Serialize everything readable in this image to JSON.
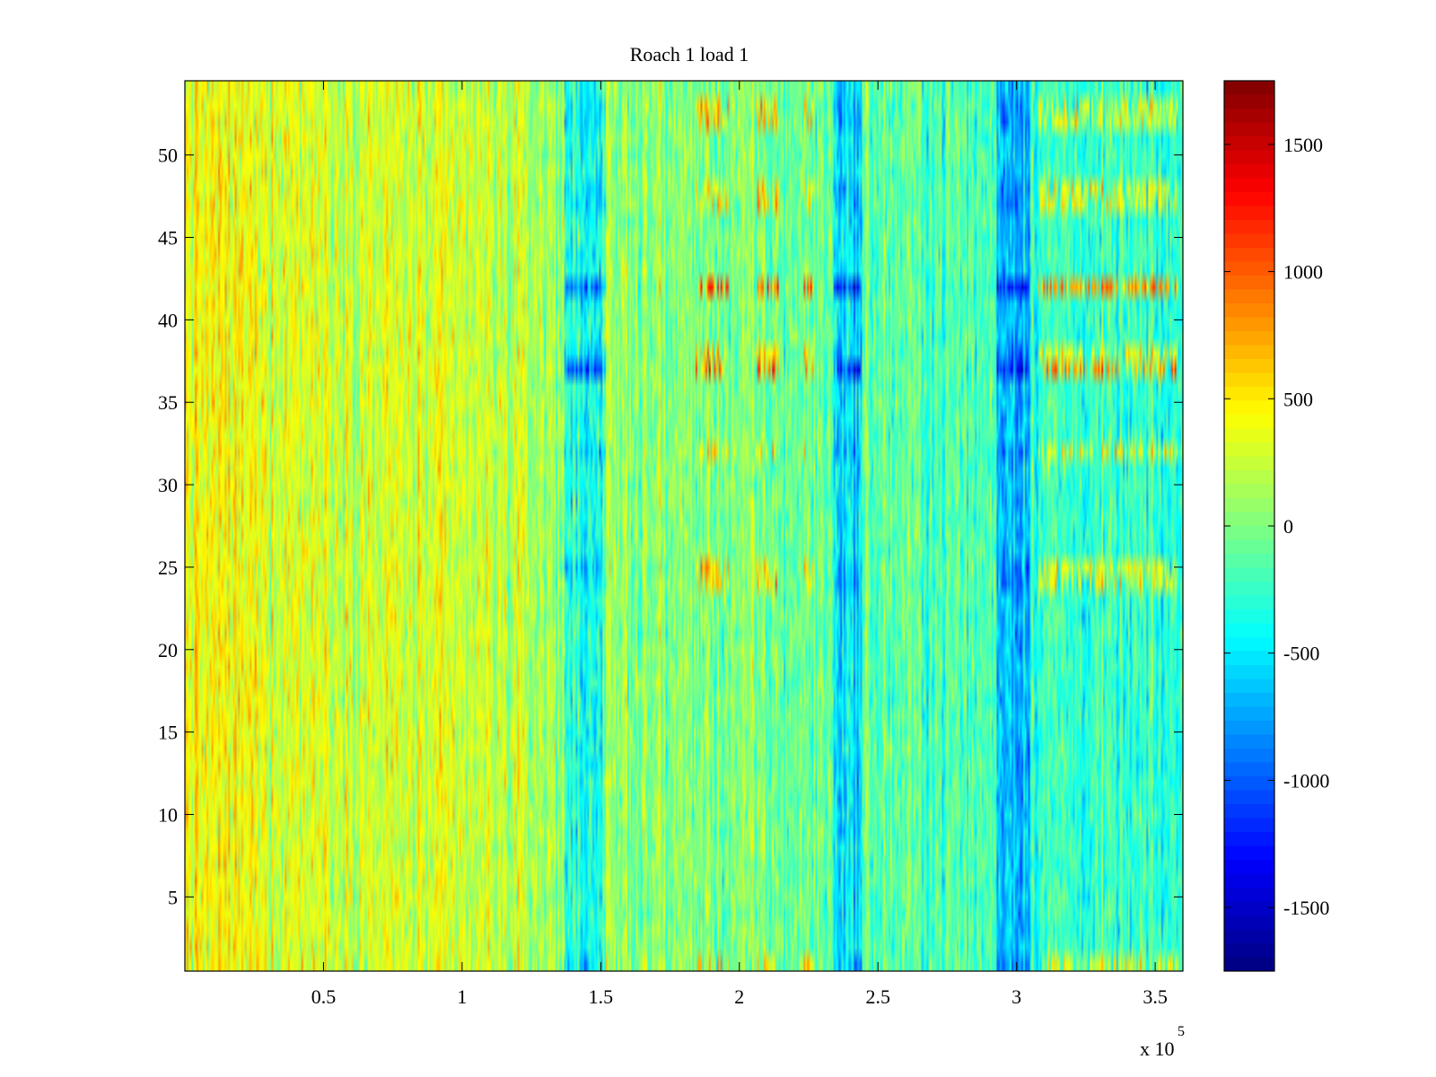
{
  "chart_data": {
    "type": "heatmap",
    "title": "Roach 1 load 1",
    "xlabel": "",
    "ylabel": "",
    "x_multiplier_base": "x 10",
    "x_multiplier_exponent": "5",
    "xlim": [
      0,
      3.6
    ],
    "ylim": [
      0.5,
      54.5
    ],
    "x_ticks": [
      0.5,
      1,
      1.5,
      2,
      2.5,
      3,
      3.5
    ],
    "x_tick_labels": [
      "0.5",
      "1",
      "1.5",
      "2",
      "2.5",
      "3",
      "3.5"
    ],
    "y_ticks": [
      5,
      10,
      15,
      20,
      25,
      30,
      35,
      40,
      45,
      50
    ],
    "y_tick_labels": [
      "5",
      "10",
      "15",
      "20",
      "25",
      "30",
      "35",
      "40",
      "45",
      "50"
    ],
    "rows": 54,
    "columns": 600,
    "colormap": "jet",
    "colorbar": {
      "clim": [
        -1750,
        1750
      ],
      "ticks": [
        -1500,
        -1000,
        -500,
        0,
        500,
        1000,
        1500
      ],
      "tick_labels": [
        "-1500",
        "-1000",
        "-500",
        "0",
        "500",
        "1000",
        "1500"
      ]
    },
    "active_rows": [
      1,
      24,
      25,
      32,
      37,
      38,
      42,
      47,
      48,
      52,
      53
    ],
    "strong_rows": [
      37,
      42
    ],
    "negative_bands_x": [
      [
        1.37,
        1.52
      ],
      [
        2.34,
        2.44
      ],
      [
        2.93,
        3.05
      ]
    ],
    "positive_bands_x": [
      [
        1.84,
        1.96
      ],
      [
        2.06,
        2.14
      ],
      [
        2.23,
        2.27
      ],
      [
        3.08,
        3.58
      ]
    ],
    "left_bias": "values near +300 to +700 at low x, trending toward 0 to -300 at high x"
  }
}
